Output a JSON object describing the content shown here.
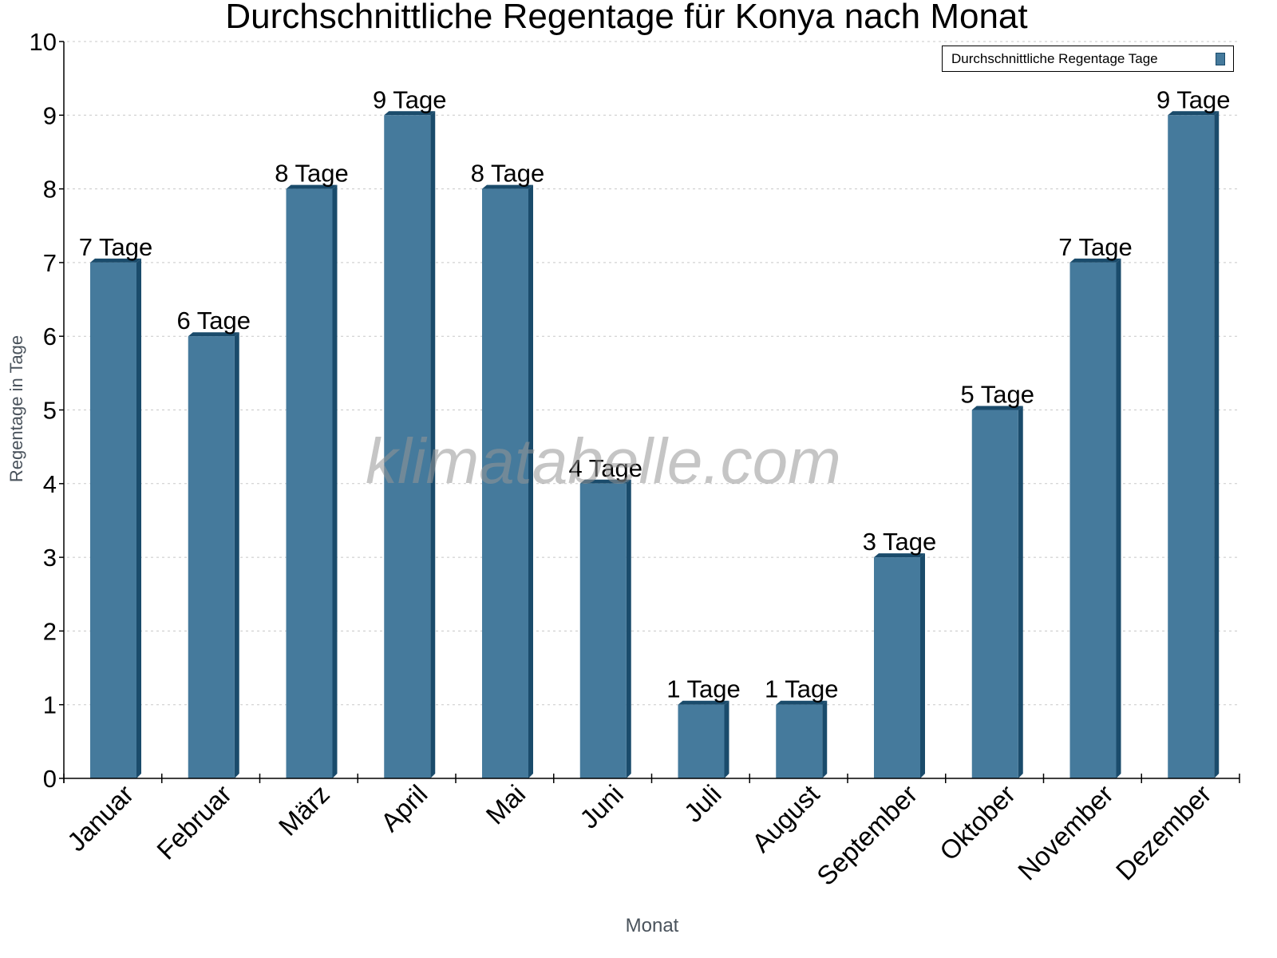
{
  "chart_data": {
    "type": "bar",
    "title": "Durchschnittliche Regentage für Konya nach Monat",
    "xlabel": "Monat",
    "ylabel": "Regentage in Tage",
    "categories": [
      "Januar",
      "Februar",
      "März",
      "April",
      "Mai",
      "Juni",
      "Juli",
      "August",
      "September",
      "Oktober",
      "November",
      "Dezember"
    ],
    "series": [
      {
        "name": "Durchschnittliche Regentage Tage",
        "values": [
          7,
          6,
          8,
          9,
          8,
          4,
          1,
          1,
          3,
          5,
          7,
          9
        ],
        "data_labels": [
          "7 Tage",
          "6 Tage",
          "8 Tage",
          "9 Tage",
          "8 Tage",
          "4 Tage",
          "1 Tage",
          "1 Tage",
          "3 Tage",
          "5 Tage",
          "7 Tage",
          "9 Tage"
        ],
        "color": "#457a9c",
        "edge_color": "#1a4b6b"
      }
    ],
    "ylim": [
      0,
      10
    ],
    "yticks": [
      0,
      1,
      2,
      3,
      4,
      5,
      6,
      7,
      8,
      9,
      10
    ],
    "grid": true,
    "legend_position": "top-right",
    "watermark": "klimatabelle.com"
  }
}
